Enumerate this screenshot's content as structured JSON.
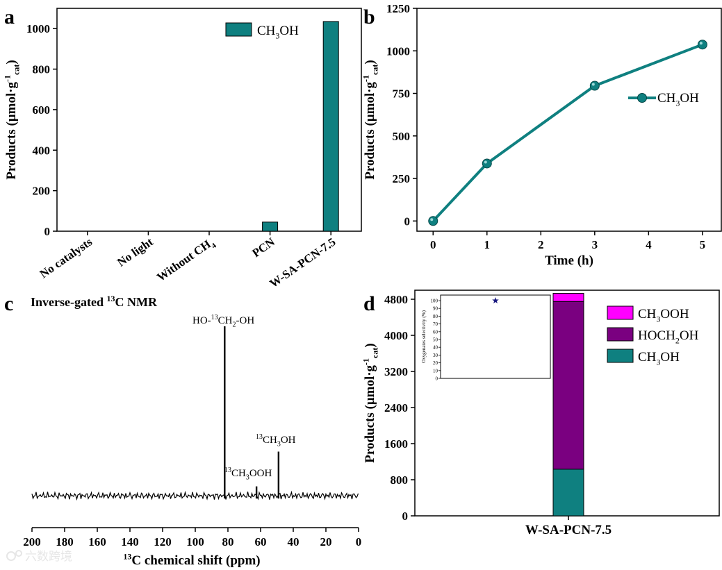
{
  "chart_data": [
    {
      "panel": "a",
      "type": "bar",
      "categories": [
        "No catalysts",
        "No light",
        "Without CH4",
        "PCN",
        "W-SA-PCN-7.5"
      ],
      "category_labels": [
        {
          "text": "No catalysts"
        },
        {
          "text": "No light"
        },
        {
          "text": "Without CH",
          "sub": "4"
        },
        {
          "text": "PCN"
        },
        {
          "text": "W-SA-PCN-7.5"
        }
      ],
      "series": [
        {
          "name": "CH3OH",
          "values": [
            0,
            0,
            0,
            45,
            1035
          ]
        }
      ],
      "legend": {
        "main": "CH",
        "sub": "3",
        "tail": "OH"
      },
      "ylabel": {
        "main": "Products (μmol·g",
        "sup": "-1",
        "sub": "cat",
        "tail": ")"
      },
      "ylim": [
        0,
        1100
      ],
      "yticks": [
        0,
        200,
        400,
        600,
        800,
        1000
      ],
      "color": "#0f8080"
    },
    {
      "panel": "b",
      "type": "line",
      "x": [
        0,
        1,
        3,
        5
      ],
      "series": [
        {
          "name": "CH3OH",
          "values": [
            0,
            338,
            795,
            1037
          ]
        }
      ],
      "legend": {
        "main": "CH",
        "sub": "3",
        "tail": "OH"
      },
      "xlabel": "Time (h)",
      "ylabel": {
        "main": "Products (μmol·g",
        "sup": "-1",
        "sub": "cat",
        "tail": ")"
      },
      "xlim": [
        -0.3,
        5.35
      ],
      "ylim": [
        -60,
        1250
      ],
      "xticks": [
        0,
        1,
        2,
        3,
        4,
        5
      ],
      "yticks": [
        0,
        250,
        500,
        750,
        1000,
        1250
      ],
      "color": "#0f8080"
    },
    {
      "panel": "c",
      "type": "line",
      "title": {
        "main": "Inverse-gated ",
        "sup": "13",
        "tail": "C NMR"
      },
      "xlabel": {
        "sup": "13",
        "main": "C chemical shift (ppm)"
      },
      "xlim": [
        200,
        0
      ],
      "xticks": [
        200,
        180,
        160,
        140,
        120,
        100,
        80,
        60,
        40,
        20,
        0
      ],
      "peaks": [
        {
          "shift": 82,
          "height": 1.0,
          "label_parts": [
            "HO-",
            "^13",
            "CH",
            "_2",
            "-OH"
          ]
        },
        {
          "shift": 49,
          "height": 0.26,
          "label_parts": [
            "^13",
            "CH",
            "_3",
            "OH"
          ]
        },
        {
          "shift": 62.5,
          "height": 0.055,
          "label_parts": [
            "^13",
            "CH",
            "_3",
            "OOH"
          ]
        }
      ]
    },
    {
      "panel": "d",
      "type": "bar",
      "stacked": true,
      "categories": [
        "W-SA-PCN-7.5"
      ],
      "series": [
        {
          "name": "CH3OH",
          "label": {
            "main": "CH",
            "sub": "3",
            "tail": "OH"
          },
          "values": [
            1035
          ],
          "color": "#0f8080"
        },
        {
          "name": "HOCH2OH",
          "label": {
            "main": "HOCH",
            "sub": "2",
            "tail": "OH"
          },
          "values": [
            3715
          ],
          "color": "#7a0080"
        },
        {
          "name": "CH3OOH",
          "label": {
            "main": "CH",
            "sub": "3",
            "tail": "OOH"
          },
          "values": [
            180
          ],
          "color": "#ff00ff"
        }
      ],
      "ylabel": {
        "main": "Products (μmol·g",
        "sup": "-1",
        "sub": "cat",
        "tail": ")"
      },
      "ylim": [
        0,
        5000
      ],
      "yticks": [
        0,
        800,
        1600,
        2400,
        3200,
        4000,
        4800
      ],
      "inset": {
        "type": "scatter",
        "ylabel": "Oxygenates selectivity (%)",
        "ylim": [
          0,
          100
        ],
        "yticks": [
          0,
          10,
          20,
          30,
          40,
          50,
          60,
          70,
          80,
          90,
          100
        ],
        "points": [
          {
            "y": 100,
            "marker": "star",
            "color": "#1a1a80"
          }
        ]
      }
    }
  ],
  "panel_labels": [
    "a",
    "b",
    "c",
    "d"
  ],
  "watermark": "六数跨境"
}
